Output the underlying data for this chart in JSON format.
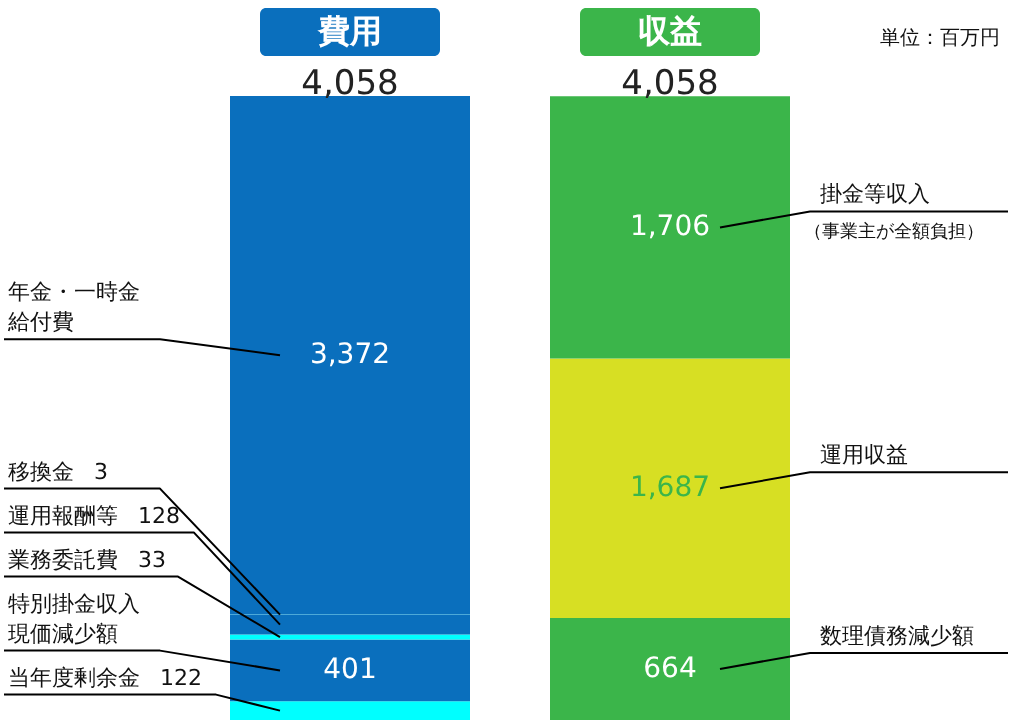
{
  "chart_data": {
    "type": "bar",
    "stacked": true,
    "categories": [
      "費用",
      "収益"
    ],
    "totals": [
      "4,058",
      "4,058"
    ],
    "annotations": [
      "単位：百万円",
      "（事業主が全額負担）"
    ],
    "series": [
      {
        "name": "当年度剰余金",
        "color": "#00ffff",
        "values": [
          122,
          null
        ],
        "value_labels": [
          "122",
          null
        ]
      },
      {
        "name": "特別掛金収入現価減少額",
        "color": "#0a6fbd",
        "values": [
          401,
          null
        ],
        "value_labels": [
          "401",
          null
        ]
      },
      {
        "name": "業務委託費",
        "color": "#00ffff",
        "values": [
          33,
          null
        ],
        "value_labels": [
          "33",
          null
        ]
      },
      {
        "name": "運用報酬等",
        "color": "#0a6fbd",
        "values": [
          128,
          null
        ],
        "value_labels": [
          "128",
          null
        ]
      },
      {
        "name": "移換金",
        "color": "#00ffff",
        "values": [
          3,
          null
        ],
        "value_labels": [
          "3",
          null
        ]
      },
      {
        "name": "年金・一時金給付費",
        "color": "#0a6fbd",
        "values": [
          3372,
          null
        ],
        "value_labels": [
          "3,372",
          null
        ]
      },
      {
        "name": "数理債務減少額",
        "color": "#3bb54a",
        "values": [
          null,
          664
        ],
        "value_labels": [
          null,
          "664"
        ]
      },
      {
        "name": "運用収益",
        "color": "#d7df23",
        "values": [
          null,
          1687
        ],
        "value_labels": [
          null,
          "1,687"
        ]
      },
      {
        "name": "掛金等収入",
        "color": "#3bb54a",
        "values": [
          null,
          1706
        ],
        "value_labels": [
          null,
          "1,706"
        ]
      }
    ]
  }
}
